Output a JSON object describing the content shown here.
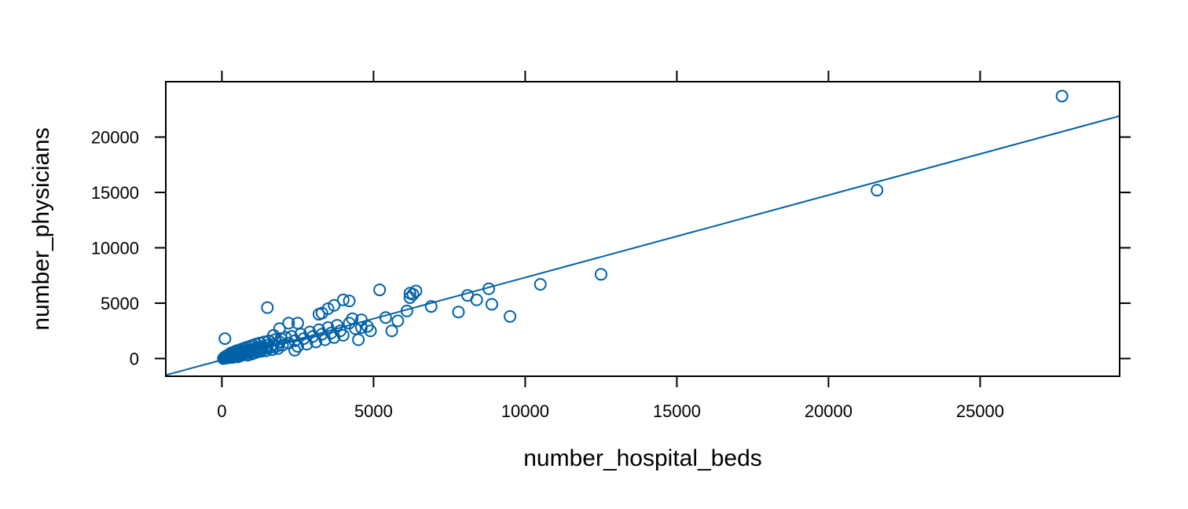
{
  "chart_data": {
    "type": "scatter",
    "title": "",
    "xlabel": "number_hospital_beds",
    "ylabel": "number_physicians",
    "xlim": [
      -1850,
      29600
    ],
    "ylim": [
      -1600,
      25000
    ],
    "xticks": [
      0,
      5000,
      10000,
      15000,
      20000,
      25000
    ],
    "yticks": [
      0,
      5000,
      10000,
      15000,
      20000
    ],
    "xtick_labels": [
      "0",
      "5000",
      "10000",
      "15000",
      "20000",
      "25000"
    ],
    "ytick_labels": [
      "0",
      "5000",
      "10000",
      "15000",
      "20000"
    ],
    "grid": false,
    "marker": "open-circle",
    "color": "#0061A8",
    "regression_line": {
      "x": [
        -1850,
        29600
      ],
      "y": [
        -1500,
        21900
      ]
    },
    "points": [
      [
        50,
        0
      ],
      [
        80,
        100
      ],
      [
        100,
        60
      ],
      [
        120,
        180
      ],
      [
        150,
        40
      ],
      [
        160,
        250
      ],
      [
        180,
        120
      ],
      [
        200,
        300
      ],
      [
        220,
        80
      ],
      [
        250,
        400
      ],
      [
        260,
        200
      ],
      [
        280,
        150
      ],
      [
        300,
        500
      ],
      [
        320,
        260
      ],
      [
        350,
        100
      ],
      [
        380,
        350
      ],
      [
        400,
        600
      ],
      [
        420,
        220
      ],
      [
        450,
        450
      ],
      [
        480,
        700
      ],
      [
        500,
        300
      ],
      [
        520,
        150
      ],
      [
        550,
        550
      ],
      [
        580,
        400
      ],
      [
        600,
        800
      ],
      [
        620,
        250
      ],
      [
        650,
        650
      ],
      [
        680,
        500
      ],
      [
        700,
        900
      ],
      [
        720,
        350
      ],
      [
        750,
        700
      ],
      [
        780,
        450
      ],
      [
        800,
        1000
      ],
      [
        820,
        600
      ],
      [
        850,
        300
      ],
      [
        880,
        750
      ],
      [
        900,
        550
      ],
      [
        920,
        1100
      ],
      [
        950,
        650
      ],
      [
        980,
        400
      ],
      [
        1000,
        800
      ],
      [
        1020,
        1200
      ],
      [
        1050,
        700
      ],
      [
        1080,
        500
      ],
      [
        1100,
        900
      ],
      [
        1120,
        1300
      ],
      [
        1150,
        750
      ],
      [
        1180,
        600
      ],
      [
        1200,
        1000
      ],
      [
        1250,
        1400
      ],
      [
        1280,
        850
      ],
      [
        1300,
        650
      ],
      [
        1350,
        1100
      ],
      [
        1400,
        1500
      ],
      [
        1420,
        900
      ],
      [
        1450,
        700
      ],
      [
        1500,
        1200
      ],
      [
        1550,
        1600
      ],
      [
        1600,
        1000
      ],
      [
        1650,
        800
      ],
      [
        1700,
        1300
      ],
      [
        1750,
        1700
      ],
      [
        1800,
        1100
      ],
      [
        1850,
        900
      ],
      [
        1900,
        1500
      ],
      [
        1950,
        1800
      ],
      [
        2000,
        1200
      ],
      [
        2100,
        1900
      ],
      [
        2200,
        1400
      ],
      [
        2300,
        2000
      ],
      [
        2400,
        1600
      ],
      [
        2500,
        1100
      ],
      [
        2600,
        2200
      ],
      [
        2700,
        1800
      ],
      [
        2800,
        1300
      ],
      [
        2900,
        2400
      ],
      [
        3000,
        2000
      ],
      [
        3100,
        1500
      ],
      [
        3200,
        2600
      ],
      [
        3300,
        2200
      ],
      [
        3400,
        1700
      ],
      [
        3500,
        2800
      ],
      [
        3600,
        2300
      ],
      [
        3700,
        1900
      ],
      [
        3800,
        3000
      ],
      [
        3900,
        2500
      ],
      [
        4000,
        2100
      ],
      [
        4200,
        3200
      ],
      [
        4400,
        2700
      ],
      [
        4600,
        3500
      ],
      [
        4800,
        2900
      ],
      [
        100,
        1800
      ],
      [
        1500,
        4600
      ],
      [
        1700,
        2100
      ],
      [
        1900,
        2700
      ],
      [
        2200,
        3200
      ],
      [
        2500,
        3200
      ],
      [
        2400,
        750
      ],
      [
        3200,
        4000
      ],
      [
        3300,
        4100
      ],
      [
        3500,
        4500
      ],
      [
        3700,
        4800
      ],
      [
        4000,
        5300
      ],
      [
        4200,
        5200
      ],
      [
        4300,
        3600
      ],
      [
        4500,
        1700
      ],
      [
        4600,
        2800
      ],
      [
        4900,
        2500
      ],
      [
        5200,
        6200
      ],
      [
        5400,
        3700
      ],
      [
        5600,
        2500
      ],
      [
        5800,
        3400
      ],
      [
        6100,
        4300
      ],
      [
        6200,
        5500
      ],
      [
        6200,
        5900
      ],
      [
        6300,
        5800
      ],
      [
        6400,
        6100
      ],
      [
        6900,
        4700
      ],
      [
        7800,
        4200
      ],
      [
        8100,
        5700
      ],
      [
        8400,
        5300
      ],
      [
        8800,
        6300
      ],
      [
        8900,
        4900
      ],
      [
        9500,
        3800
      ],
      [
        10500,
        6700
      ],
      [
        12500,
        7600
      ],
      [
        21600,
        15200
      ],
      [
        27700,
        23700
      ]
    ]
  }
}
